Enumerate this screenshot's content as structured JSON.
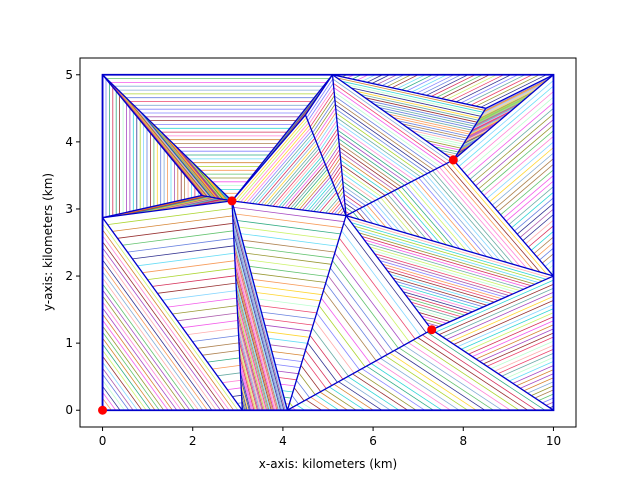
{
  "chart_data": {
    "type": "scatter",
    "title": "",
    "xlabel": "x-axis: kilometers (km)",
    "ylabel": "y-axis: kilometers (km)",
    "xlim": [
      -0.5,
      10.5
    ],
    "ylim": [
      -0.25,
      5.25
    ],
    "xticks": [
      0,
      2,
      4,
      6,
      8,
      10
    ],
    "yticks": [
      0,
      1,
      2,
      3,
      4,
      5
    ],
    "grid": false,
    "boundary": [
      [
        0,
        0
      ],
      [
        10,
        0
      ],
      [
        10,
        5
      ],
      [
        0,
        5
      ]
    ],
    "triangulation_nodes": [
      [
        0,
        0
      ],
      [
        3.1,
        0
      ],
      [
        4.1,
        0
      ],
      [
        10,
        0
      ],
      [
        10,
        2.0
      ],
      [
        10,
        5
      ],
      [
        5.1,
        5
      ],
      [
        0,
        5
      ],
      [
        0,
        2.87
      ],
      [
        2.87,
        3.12
      ],
      [
        5.4,
        2.9
      ],
      [
        7.3,
        1.2
      ],
      [
        7.78,
        3.73
      ],
      [
        4.5,
        4.4
      ],
      [
        8.5,
        4.5
      ],
      [
        2.2,
        3.2
      ]
    ],
    "triangles": [
      [
        0,
        1,
        8
      ],
      [
        1,
        9,
        8
      ],
      [
        1,
        2,
        9
      ],
      [
        2,
        10,
        9
      ],
      [
        2,
        11,
        10
      ],
      [
        2,
        3,
        11
      ],
      [
        3,
        4,
        11
      ],
      [
        11,
        4,
        10
      ],
      [
        10,
        4,
        12
      ],
      [
        4,
        5,
        12
      ],
      [
        12,
        5,
        14
      ],
      [
        12,
        14,
        6
      ],
      [
        6,
        14,
        5
      ],
      [
        10,
        12,
        6
      ],
      [
        10,
        6,
        13
      ],
      [
        10,
        13,
        9
      ],
      [
        13,
        6,
        9
      ],
      [
        9,
        6,
        7
      ],
      [
        9,
        7,
        15
      ],
      [
        15,
        7,
        8
      ],
      [
        9,
        15,
        8
      ]
    ],
    "highlight_points": {
      "color": "#ff0000",
      "points": [
        [
          0,
          0
        ],
        [
          2.87,
          3.12
        ],
        [
          7.3,
          1.2
        ],
        [
          7.78,
          3.73
        ]
      ]
    },
    "edge_color": "#0000cc"
  }
}
